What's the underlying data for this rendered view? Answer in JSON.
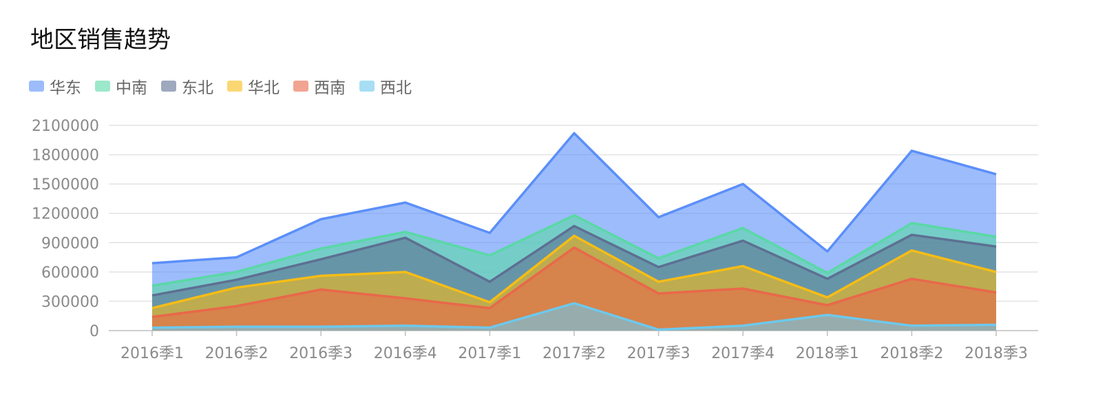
{
  "chart_data": {
    "type": "area",
    "stacked": true,
    "title": "地区销售趋势",
    "categories": [
      "2016季1",
      "2016季2",
      "2016季3",
      "2016季4",
      "2017季1",
      "2017季2",
      "2017季3",
      "2017季4",
      "2018季1",
      "2018季2",
      "2018季3"
    ],
    "y_ticks": [
      0,
      300000,
      600000,
      900000,
      1200000,
      1500000,
      1800000,
      2100000
    ],
    "ylim": [
      0,
      2100000
    ],
    "legend_position": "top-left",
    "series": [
      {
        "name": "华东",
        "color": "#5b8ff9",
        "values": [
          230000,
          150000,
          300000,
          300000,
          230000,
          840000,
          420000,
          450000,
          220000,
          740000,
          640000
        ]
      },
      {
        "name": "中南",
        "color": "#5ad8a6",
        "values": [
          100000,
          80000,
          110000,
          60000,
          270000,
          110000,
          90000,
          130000,
          60000,
          120000,
          100000
        ]
      },
      {
        "name": "东北",
        "color": "#5d7092",
        "values": [
          130000,
          80000,
          170000,
          350000,
          210000,
          100000,
          150000,
          260000,
          190000,
          160000,
          260000
        ]
      },
      {
        "name": "华北",
        "color": "#f6bd16",
        "values": [
          90000,
          190000,
          140000,
          270000,
          60000,
          120000,
          120000,
          230000,
          80000,
          290000,
          210000
        ]
      },
      {
        "name": "西南",
        "color": "#e8684a",
        "values": [
          110000,
          210000,
          380000,
          280000,
          200000,
          570000,
          370000,
          380000,
          100000,
          480000,
          330000
        ]
      },
      {
        "name": "西北",
        "color": "#6dc8ec",
        "values": [
          30000,
          40000,
          40000,
          50000,
          30000,
          280000,
          10000,
          50000,
          160000,
          50000,
          60000
        ]
      }
    ]
  }
}
